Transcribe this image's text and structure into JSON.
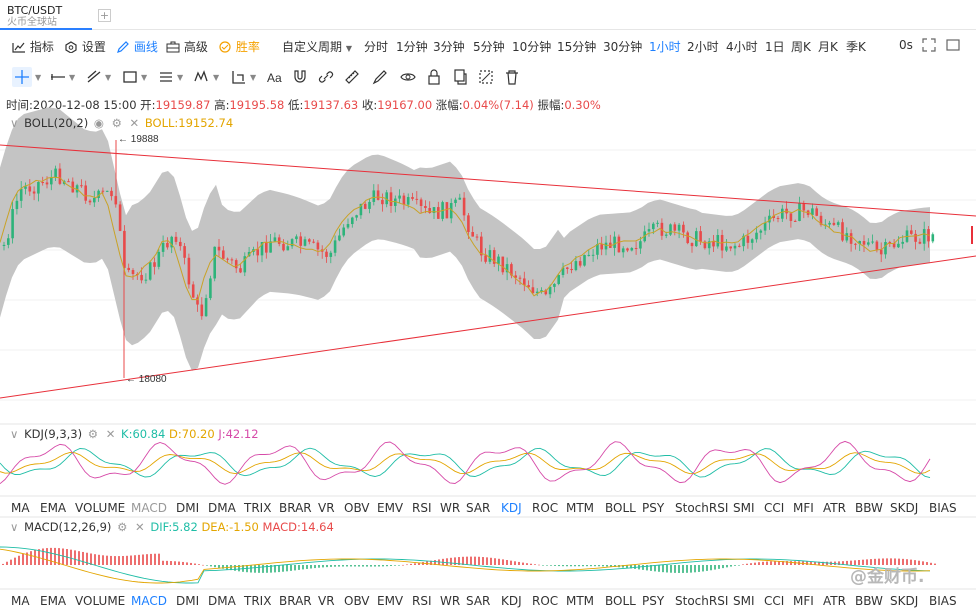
{
  "tab": {
    "symbol": "BTC/USDT",
    "exchange": "火币全球站"
  },
  "toolbar": {
    "indicators": "指标",
    "settings": "设置",
    "draw": "画线",
    "advanced": "高级",
    "winrate": "胜率",
    "custom_period": "自定义周期",
    "periods": [
      "分时",
      "1分钟",
      "3分钟",
      "5分钟",
      "10分钟",
      "15分钟",
      "30分钟",
      "1小时",
      "2小时",
      "4小时",
      "1日",
      "周K",
      "月K",
      "季K"
    ],
    "active_period": "1小时",
    "zero_s": "0s"
  },
  "ohlc": {
    "time_label": "时间:",
    "time": "2020-12-08 15:00",
    "open_label": "开:",
    "open": "19159.87",
    "high_label": "高:",
    "high": "19195.58",
    "low_label": "低:",
    "low": "19137.63",
    "close_label": "收:",
    "close": "19167.00",
    "change_label": "涨幅:",
    "change": "0.04%(7.14)",
    "amp_label": "振幅:",
    "amp": "0.30%"
  },
  "boll": {
    "name": "BOLL(20,2)",
    "value": "BOLL:19152.74",
    "high_mark": "19888",
    "low_mark": "18080"
  },
  "kdj": {
    "name": "KDJ(9,3,3)",
    "k": "K:60.84",
    "d": "D:70.20",
    "j": "J:42.12"
  },
  "macd": {
    "name": "MACD(12,26,9)",
    "dif": "DIF:5.82",
    "dea": "DEA:-1.50",
    "macd": "MACD:14.64"
  },
  "indicator_bar": [
    "MA",
    "EMA",
    "VOLUME",
    "MACD",
    "DMI",
    "DMA",
    "TRIX",
    "BRAR",
    "VR",
    "OBV",
    "EMV",
    "RSI",
    "WR",
    "SAR",
    "KDJ",
    "ROC",
    "MTM",
    "BOLL",
    "PSY",
    "StochRSI",
    "SMI",
    "CCI",
    "MFI",
    "ATR",
    "BBW",
    "SKDJ",
    "BIAS"
  ],
  "indicator_bar_active_1": "KDJ",
  "indicator_bar_active_2": "MACD",
  "watermark": "@金财币.",
  "colors": {
    "up": "#2db37a",
    "down": "#e84a4a",
    "accent": "#1e80ff",
    "band": "#c4c4c4",
    "mid": "#c9a227",
    "trend": "#e8303a"
  }
}
